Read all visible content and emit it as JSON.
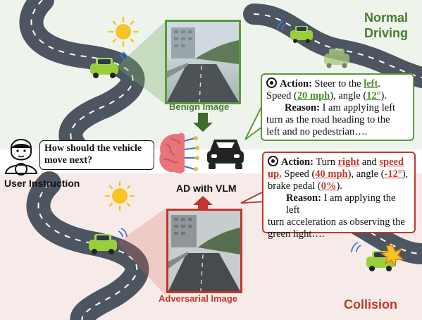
{
  "top_right_label_line1": "Normal",
  "top_right_label_line2": "Driving",
  "bottom_right_label": "Collision",
  "benign_label": "Benign Image",
  "adversarial_label": "Adversarial Image",
  "model_label": "AD with VLM",
  "user_label": "User Instruction",
  "question_line1": "How should the vehicle",
  "question_line2": "move next?",
  "benign_response": {
    "action_label": "Action:",
    "action_text_1": "Steer to the",
    "action_hl_1": "left",
    "action_text_2": ".",
    "speed_text": "Speed (",
    "speed_val": "20 mph",
    "angle_text": "), angle (",
    "angle_val": "12°",
    "angle_end": ").",
    "reason_label": "Reason:",
    "reason_l1": "I am applying left",
    "reason_l2": "turn as the road heading to the",
    "reason_l3": "left and no pedestrian…."
  },
  "adversarial_response": {
    "action_label": "Action:",
    "action_text_1": "Turn",
    "action_hl_1": "right",
    "action_text_2": "and",
    "action_hl_2": "speed",
    "action_hl_3": "up.",
    "speed_text": "Speed (",
    "speed_val": "40 mph",
    "angle_text": "), angle (",
    "angle_val": "-12°",
    "angle_end": "),",
    "brake_text": "brake pedal (",
    "brake_val": "0%",
    "brake_end": ").",
    "reason_label": "Reason:",
    "reason_l1": "I am applying the left",
    "reason_l2": "turn acceleration as observing the",
    "reason_l3": "green light…."
  },
  "colors": {
    "green": "#5a9a3a",
    "red": "#c0382c",
    "road": "#5b6470",
    "car": "#9bcf3a"
  }
}
